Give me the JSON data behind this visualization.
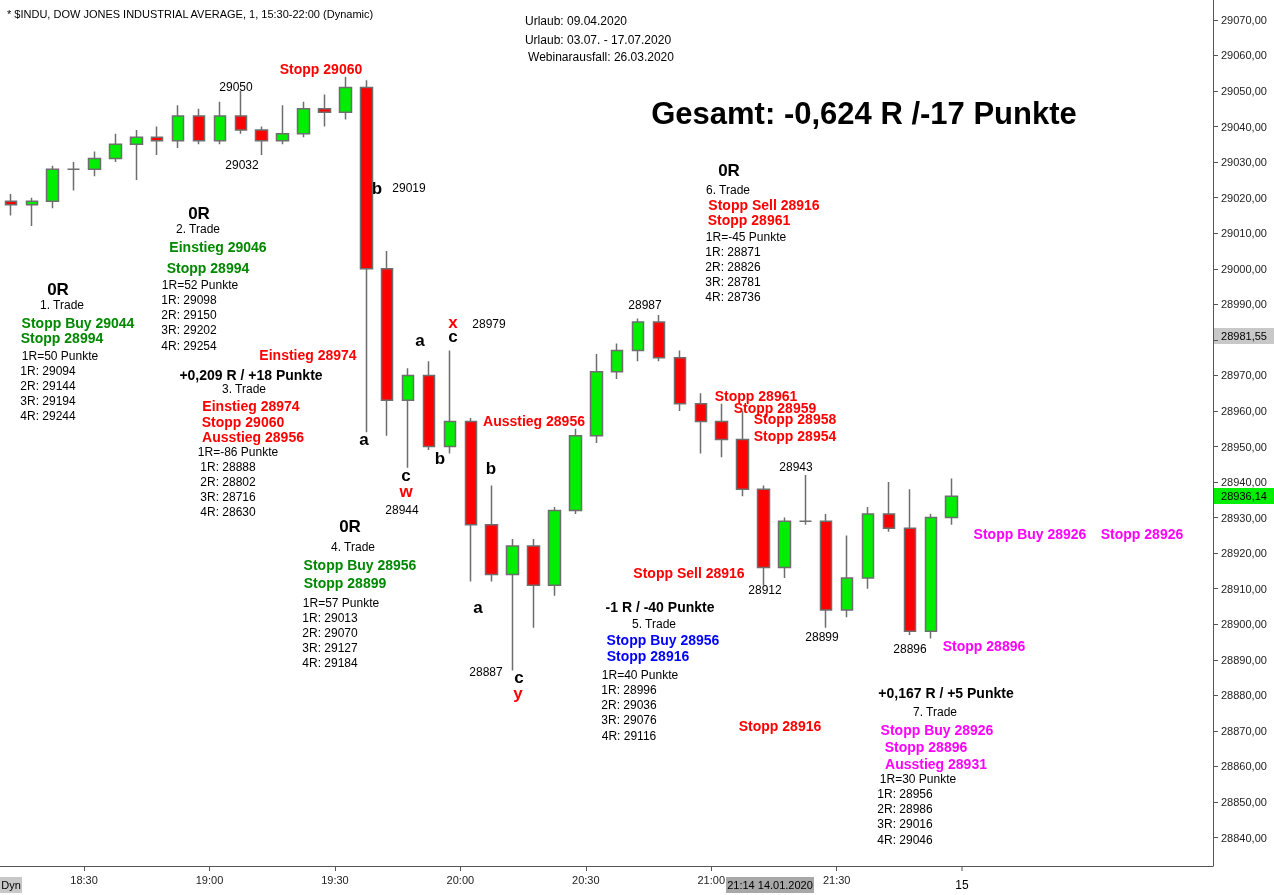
{
  "chart_data": {
    "type": "candlestick",
    "title": "* $INDU, DOW JONES INDUSTRIAL AVERAGE, 1, 15:30-22:00 (Dynamic)",
    "subtitle": "Gesamt: -0,624 R /-17 Punkte",
    "x": [
      18.2083,
      18.2917,
      18.375,
      18.4583,
      18.5417,
      18.625,
      18.7083,
      18.7917,
      18.875,
      18.9583,
      19.0417,
      19.125,
      19.2083,
      19.2917,
      19.375,
      19.4583,
      19.5417,
      19.625,
      19.7083,
      19.7917,
      19.875,
      19.9583,
      20.0417,
      20.125,
      20.2083,
      20.2917,
      20.375,
      20.4583,
      20.5417,
      20.625,
      20.7083,
      20.7917,
      20.875,
      20.9583,
      21.0417,
      21.125,
      21.2083,
      21.2917,
      21.375,
      21.4583,
      21.5417,
      21.625,
      21.7083,
      21.7917,
      21.875,
      21.9583
    ],
    "ohlc": [
      [
        29019,
        29021,
        29015,
        29018
      ],
      [
        29018,
        29020,
        29012,
        29019
      ],
      [
        29019,
        29029,
        29017,
        29028
      ],
      [
        29028,
        29030,
        29022,
        29028
      ],
      [
        29028,
        29033,
        29026,
        29031
      ],
      [
        29031,
        29038,
        29030,
        29035
      ],
      [
        29035,
        29039,
        29025,
        29037
      ],
      [
        29037,
        29040,
        29032,
        29036
      ],
      [
        29036,
        29046,
        29034,
        29043
      ],
      [
        29043,
        29045,
        29035,
        29036
      ],
      [
        29036,
        29047,
        29035,
        29043
      ],
      [
        29043,
        29050,
        29038,
        29039
      ],
      [
        29039,
        29040,
        29032,
        29036
      ],
      [
        29036,
        29046,
        29035,
        29038
      ],
      [
        29038,
        29047,
        29037,
        29045
      ],
      [
        29045,
        29049,
        29040,
        29044
      ],
      [
        29044,
        29054,
        29042,
        29051
      ],
      [
        29051,
        29053,
        28954,
        29000
      ],
      [
        29000,
        29005,
        28953,
        28963
      ],
      [
        28963,
        28972,
        28944,
        28970
      ],
      [
        28970,
        28974,
        28949,
        28950
      ],
      [
        28950,
        28977,
        28948,
        28957
      ],
      [
        28957,
        28958,
        28912,
        28928
      ],
      [
        28928,
        28939,
        28912,
        28914
      ],
      [
        28914,
        28924,
        28887,
        28922
      ],
      [
        28922,
        28924,
        28899,
        28911
      ],
      [
        28911,
        28933,
        28908,
        28932
      ],
      [
        28932,
        28955,
        28931,
        28953
      ],
      [
        28953,
        28976,
        28951,
        28971
      ],
      [
        28971,
        28979,
        28969,
        28977
      ],
      [
        28977,
        28986,
        28974,
        28985
      ],
      [
        28985,
        28987,
        28974,
        28975
      ],
      [
        28975,
        28977,
        28960,
        28962
      ],
      [
        28962,
        28965,
        28948,
        28957
      ],
      [
        28957,
        28962,
        28947,
        28952
      ],
      [
        28952,
        28960,
        28936,
        28938
      ],
      [
        28938,
        28939,
        28911,
        28916
      ],
      [
        28916,
        28930,
        28913,
        28929
      ],
      [
        28929,
        28942,
        28928,
        28929
      ],
      [
        28929,
        28931,
        28899,
        28904
      ],
      [
        28904,
        28925,
        28902,
        28913
      ],
      [
        28913,
        28933,
        28910,
        28931
      ],
      [
        28931,
        28940,
        28926,
        28927
      ],
      [
        28927,
        28938,
        28897,
        28898
      ],
      [
        28898,
        28931,
        28896,
        28930
      ],
      [
        28930,
        28941,
        28928,
        28936
      ]
    ],
    "xlim": [
      18.165,
      23.0
    ],
    "xticks": [
      {
        "value": 18.5,
        "label": "18:30"
      },
      {
        "value": 19,
        "label": "19:00"
      },
      {
        "value": 19.5,
        "label": "19:30"
      },
      {
        "value": 20,
        "label": "20:00"
      },
      {
        "value": 20.5,
        "label": "20:30"
      },
      {
        "value": 21,
        "label": "21:00"
      },
      {
        "value": 21.5,
        "label": "21:30"
      }
    ],
    "ylim": [
      28832,
      29075.6
    ],
    "yticks": [
      {
        "value": 28840,
        "label": "28840,00"
      },
      {
        "value": 28850,
        "label": "28850,00"
      },
      {
        "value": 28860,
        "label": "28860,00"
      },
      {
        "value": 28870,
        "label": "28870,00"
      },
      {
        "value": 28880,
        "label": "28880,00"
      },
      {
        "value": 28890,
        "label": "28890,00"
      },
      {
        "value": 28900,
        "label": "28900,00"
      },
      {
        "value": 28910,
        "label": "28910,00"
      },
      {
        "value": 28920,
        "label": "28920,00"
      },
      {
        "value": 28930,
        "label": "28930,00"
      },
      {
        "value": 28940,
        "label": "28940,00"
      },
      {
        "value": 28950,
        "label": "28950,00"
      },
      {
        "value": 28960,
        "label": "28960,00"
      },
      {
        "value": 28970,
        "label": "28970,00"
      },
      {
        "value": 28980,
        "label": null
      },
      {
        "value": 28990,
        "label": "28990,00"
      },
      {
        "value": 29000,
        "label": "29000,00"
      },
      {
        "value": 29010,
        "label": "29010,00"
      },
      {
        "value": 29020,
        "label": "29020,00"
      },
      {
        "value": 29030,
        "label": "29030,00"
      },
      {
        "value": 29040,
        "label": "29040,00"
      },
      {
        "value": 29050,
        "label": "29050,00"
      },
      {
        "value": 29060,
        "label": "29060,00"
      },
      {
        "value": 29070,
        "label": "29070,00"
      }
    ],
    "annotations": [
      "Urlaub: 09.04.2020",
      "Urlaub: 03.07. - 17.07.2020",
      "Webinarausfall: 26.03.2020",
      "Stopp 29060",
      "29050",
      "29032",
      "b",
      "29019",
      "0R",
      "2. Trade",
      "Einstieg 29046",
      "Stopp 28994",
      "1R=52 Punkte",
      "1R: 29098",
      "2R: 29150",
      "3R: 29202",
      "4R: 29254",
      "0R",
      "1. Trade",
      "Stopp Buy 29044",
      "Stopp 28994",
      "1R=50 Punkte",
      "1R: 29094",
      "2R: 29144",
      "3R: 29194",
      "4R: 29244",
      "Einstieg 28974",
      "+0,209 R / +18 Punkte",
      "3. Trade",
      "Einstieg 28974",
      "Stopp 29060",
      "Ausstieg 28956",
      "1R=-86 Punkte",
      "1R: 28888",
      "2R: 28802",
      "3R: 28716",
      "4R: 28630",
      "a",
      "c",
      "w",
      "28944",
      "a",
      "x",
      "c",
      "28979",
      "b",
      "Ausstieg 28956",
      "b",
      "a",
      "28887",
      "c",
      "y",
      "0R",
      "4. Trade",
      "Stopp Buy 28956",
      "Stopp 28899",
      "1R=57 Punkte",
      "1R: 29013",
      "2R: 29070",
      "3R: 29127",
      "4R: 29184",
      "28987",
      "0R",
      "6. Trade",
      "Stopp Sell 28916",
      "Stopp 28961",
      "1R=-45 Punkte",
      "1R: 28871",
      "2R: 28826",
      "3R: 28781",
      "4R: 28736",
      "Stopp 28961",
      "Stopp 28959",
      "Stopp 28958",
      "Stopp 28954",
      "28943",
      "Stopp Sell 28916",
      "28912",
      "-1 R / -40 Punkte",
      "5. Trade",
      "Stopp Buy 28956",
      "Stopp 28916",
      "1R=40 Punkte",
      "1R: 28996",
      "2R: 29036",
      "3R: 29076",
      "4R: 29116",
      "28899",
      "28896",
      "Stopp 28896",
      "Stopp Buy 28926",
      "Stopp 28926",
      "Stopp 28916",
      "+0,167 R / +5 Punkte",
      "7. Trade",
      "Stopp Buy 28926",
      "Stopp 28896",
      "Ausstieg 28931",
      "1R=30 Punkte",
      "1R: 28956",
      "2R: 28986",
      "3R: 29016",
      "4R: 29046",
      "28981,55",
      "28936,14",
      "21:14 14.01.2020",
      "Dyn",
      "15"
    ]
  }
}
